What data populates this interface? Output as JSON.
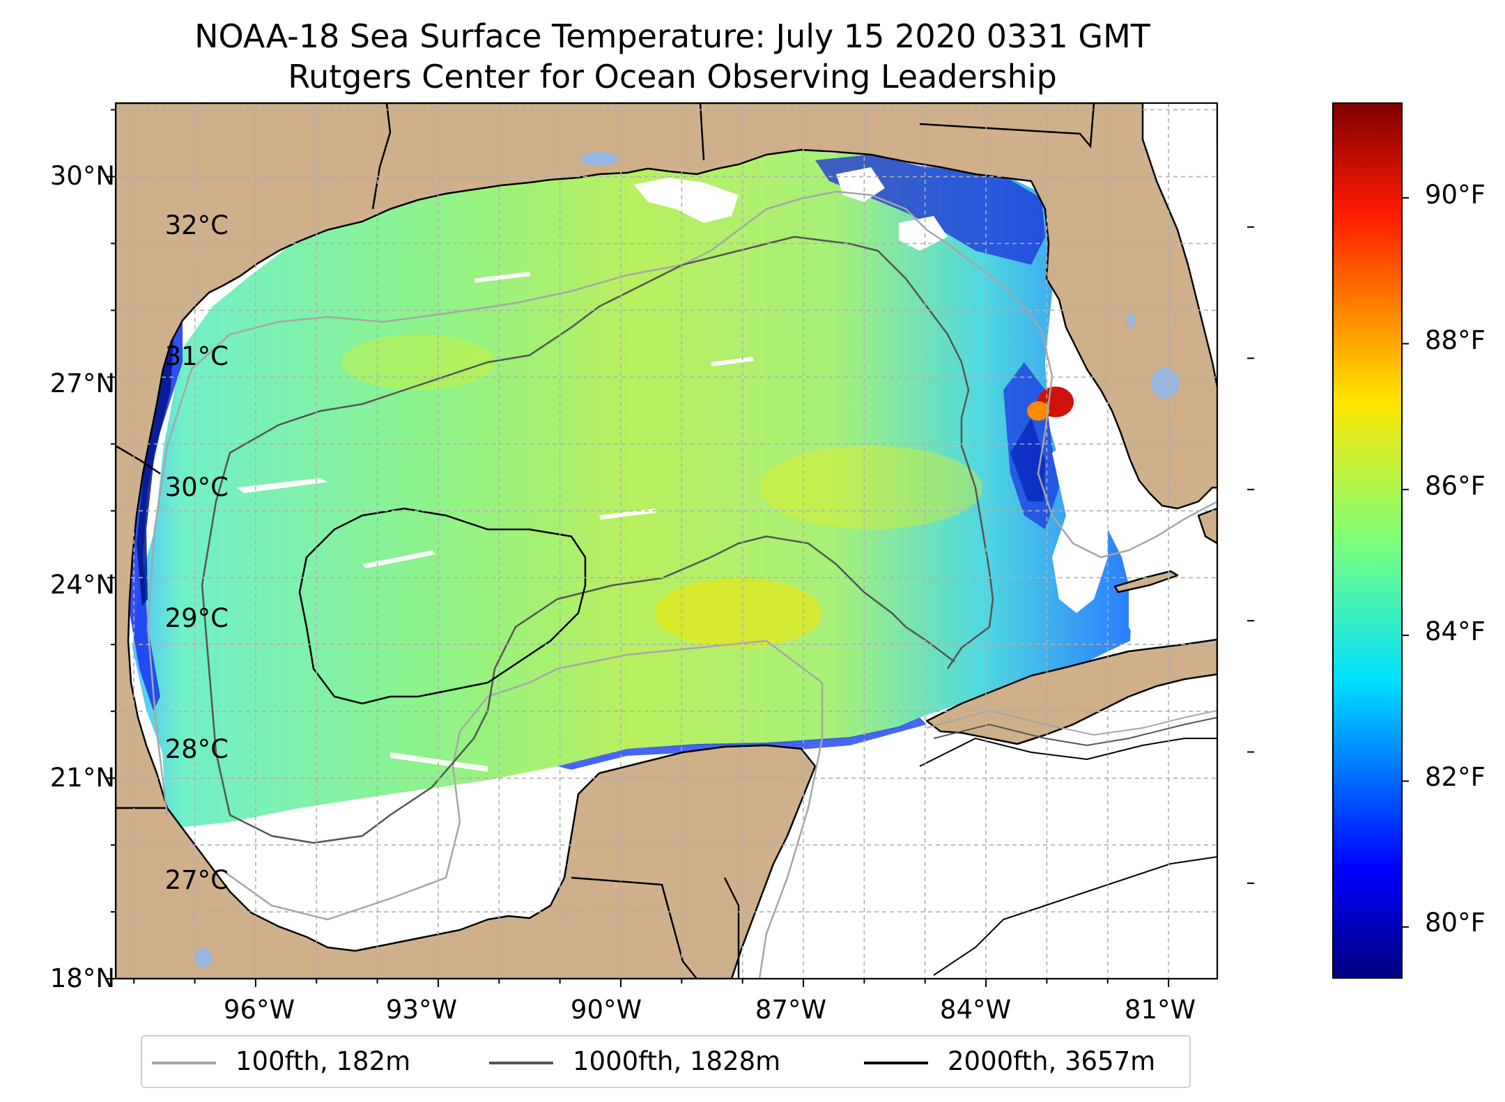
{
  "title": {
    "line1": "NOAA-18 Sea Surface Temperature: July 15 2020 0331 GMT",
    "line2": "Rutgers Center for Ocean Observing Leadership"
  },
  "map": {
    "region": "Gulf of Mexico",
    "lon_range": [
      -98.3,
      -80.2
    ],
    "lat_range": [
      18,
      31.1
    ],
    "lat_ticks": [
      "18°N",
      "21°N",
      "24°N",
      "27°N",
      "30°N"
    ],
    "lon_ticks": [
      "96°W",
      "93°W",
      "90°W",
      "87°W",
      "84°W",
      "81°W"
    ],
    "grid": true,
    "colors": {
      "land": "#cfb08b",
      "lakes": "#97b6e2",
      "no_data": "#ffffff",
      "coastline": "#000000"
    }
  },
  "colorbar": {
    "colormap": "jet",
    "range_f": [
      79.3,
      91.3
    ],
    "fahrenheit_ticks": [
      "80°F",
      "82°F",
      "84°F",
      "86°F",
      "88°F",
      "90°F"
    ],
    "celsius_ticks": [
      "27°C",
      "28°C",
      "29°C",
      "30°C",
      "31°C",
      "32°C"
    ]
  },
  "legend": {
    "placement": "bottom",
    "items": [
      {
        "label": "100fth, 182m",
        "color": "#a6a6a6"
      },
      {
        "label": "1000fth, 1828m",
        "color": "#545454"
      },
      {
        "label": "2000fth, 3657m",
        "color": "#000000"
      }
    ]
  }
}
